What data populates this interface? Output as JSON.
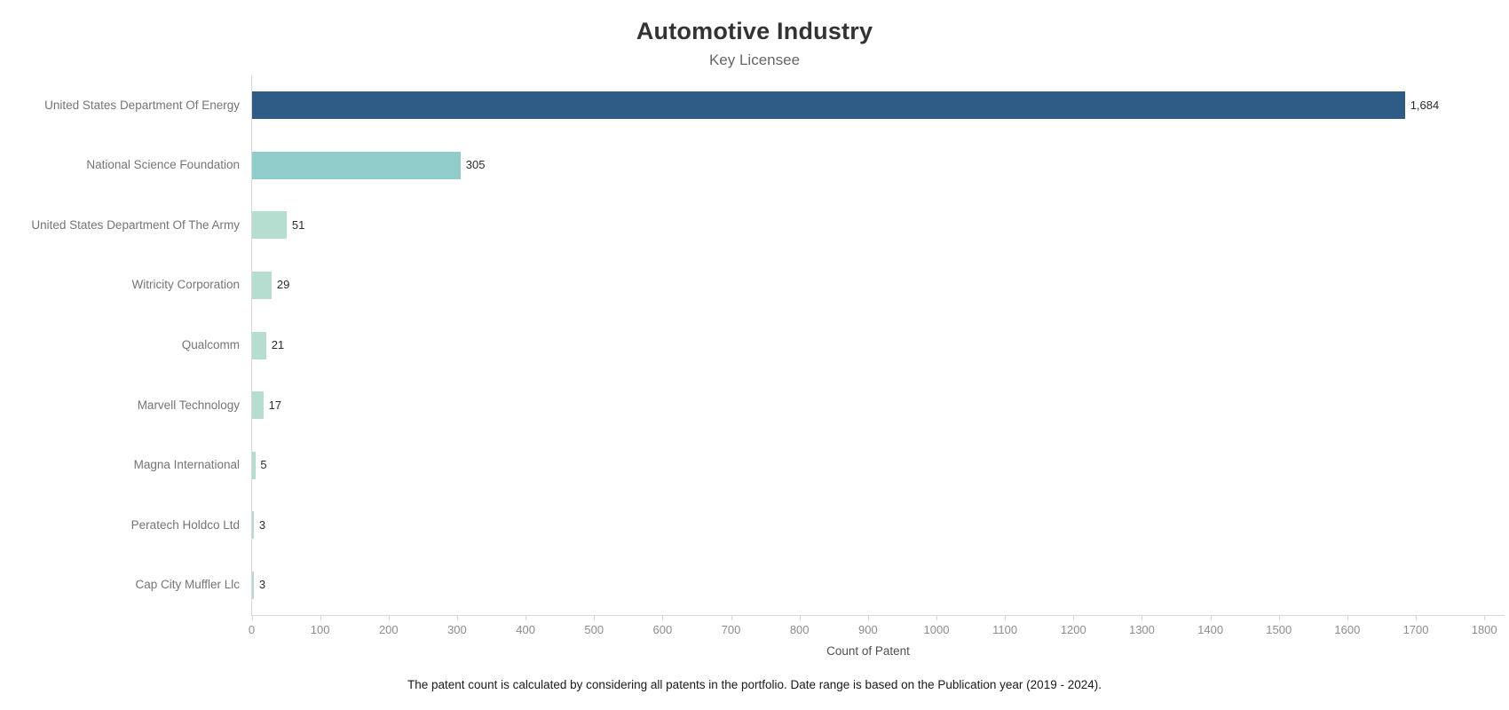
{
  "chart_data": {
    "type": "bar",
    "orientation": "horizontal",
    "title": "Automotive Industry",
    "subtitle": "Key Licensee",
    "categories": [
      "United States Department Of Energy",
      "National Science Foundation",
      "United States Department Of The Army",
      "Witricity Corporation",
      "Qualcomm",
      "Marvell Technology",
      "Magna International",
      "Peratech Holdco Ltd",
      "Cap City Muffler Llc"
    ],
    "values": [
      1684,
      305,
      51,
      29,
      21,
      17,
      5,
      3,
      3
    ],
    "value_labels": [
      "1,684",
      "305",
      "51",
      "29",
      "21",
      "17",
      "5",
      "3",
      "3"
    ],
    "bar_colors": [
      "#2e5c87",
      "#8fccca",
      "#b6ded0",
      "#b6ded0",
      "#b6ded0",
      "#b6ded0",
      "#b6ded0",
      "#b6ded0",
      "#b6ded0"
    ],
    "xlabel": "Count of Patent",
    "xlim": [
      0,
      1800
    ],
    "tick_values": [
      0,
      100,
      200,
      300,
      400,
      500,
      600,
      700,
      800,
      900,
      1000,
      1100,
      1200,
      1300,
      1400,
      1500,
      1600,
      1700,
      1800
    ],
    "tick_labels": [
      "0",
      "100",
      "200",
      "300",
      "400",
      "500",
      "600",
      "700",
      "800",
      "900",
      "1000",
      "1100",
      "1200",
      "1300",
      "1400",
      "1500",
      "1600",
      "1700",
      "1800"
    ],
    "grid": "off",
    "legend": "none",
    "footnote": "The patent count is calculated by considering all patents in the portfolio. Date range is based on the Publication year (2019 - 2024)."
  },
  "colors": {
    "title": "#333333",
    "subtitle": "#666666",
    "category_label": "#757575",
    "value_label": "#2b2b2b",
    "tick_label": "#8c8c8c",
    "axis_line": "#d8d8d8",
    "xlabel": "#4f4f4f",
    "footnote": "#1a1a1a"
  }
}
